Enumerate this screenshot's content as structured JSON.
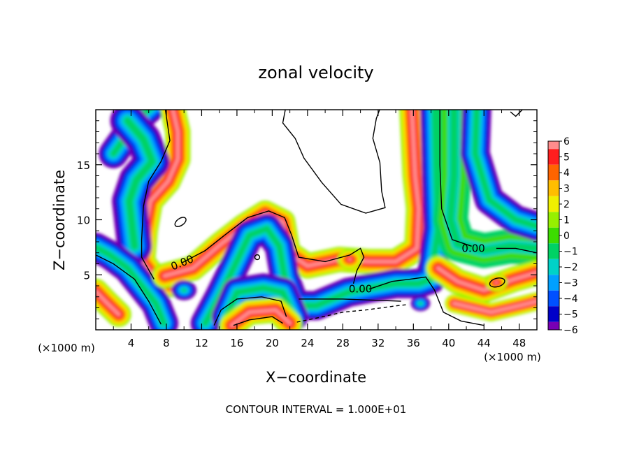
{
  "chart_data": {
    "type": "heatmap",
    "title": "zonal velocity",
    "xlabel": "X−coordinate",
    "ylabel": "Z−coordinate",
    "x_unit_label": "(×1000 m)",
    "z_unit_label": "(×1000 m)",
    "x_ticks": [
      4,
      8,
      12,
      16,
      20,
      24,
      28,
      32,
      36,
      40,
      44,
      48
    ],
    "y_ticks": [
      5,
      10,
      15
    ],
    "xlim": [
      0,
      50
    ],
    "ylim": [
      0,
      20
    ],
    "colorbar": {
      "ticks": [
        6,
        5,
        4,
        3,
        2,
        1,
        0,
        -1,
        -2,
        -3,
        -4,
        -5,
        -6
      ],
      "colors": [
        "#ff8c8c",
        "#ff1e1e",
        "#ff6400",
        "#ffbe00",
        "#f0f000",
        "#96f000",
        "#3cdc00",
        "#00d264",
        "#00d2c8",
        "#00a0ff",
        "#0050ff",
        "#0000c8",
        "#7800b4"
      ]
    },
    "contour_labels": [
      {
        "text": "0.00",
        "x": 9.8,
        "y": 6.1
      },
      {
        "text": "0.00",
        "x": 42.8,
        "y": 7.4
      },
      {
        "text": "0.00",
        "x": 30.0,
        "y": 3.7
      }
    ],
    "contour_interval_text": "CONTOUR INTERVAL = 1.000E+01"
  }
}
